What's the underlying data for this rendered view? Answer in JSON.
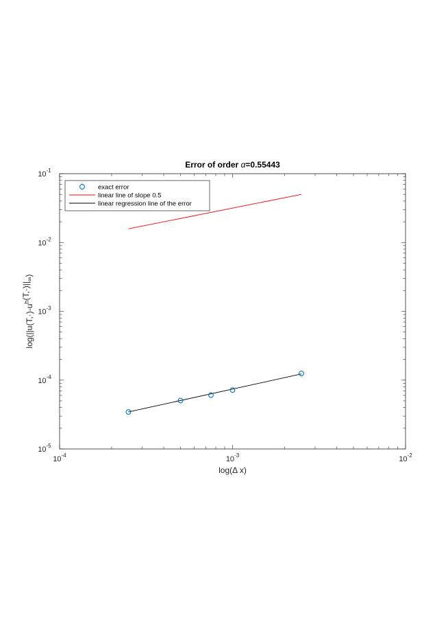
{
  "chart_data": {
    "type": "scatter",
    "title_text": "Error of order ",
    "title_symbol": "α",
    "title_value": "=0.55443",
    "x_scale": "log",
    "y_scale": "log",
    "xlim": [
      0.0001,
      0.01
    ],
    "ylim": [
      1e-05,
      0.1
    ],
    "xlabel": "log(Δ x)",
    "ylabel": "log(||u(T,·)-u^h(T,·)||_∞)",
    "x_ticks": [
      {
        "base": "10",
        "exp": "-4",
        "value": 0.0001
      },
      {
        "base": "10",
        "exp": "-3",
        "value": 0.001
      },
      {
        "base": "10",
        "exp": "-2",
        "value": 0.01
      }
    ],
    "y_ticks": [
      {
        "base": "10",
        "exp": "-5",
        "value": 1e-05
      },
      {
        "base": "10",
        "exp": "-4",
        "value": 0.0001
      },
      {
        "base": "10",
        "exp": "-3",
        "value": 0.001
      },
      {
        "base": "10",
        "exp": "-2",
        "value": 0.01
      },
      {
        "base": "10",
        "exp": "-1",
        "value": 0.1
      }
    ],
    "grid": false,
    "legend_position": "top-left",
    "series": [
      {
        "name": "exact error",
        "kind": "markers",
        "marker": "circle",
        "color": "#0072BD",
        "x": [
          0.00025,
          0.0005,
          0.00075,
          0.001,
          0.0025
        ],
        "y": [
          3.45e-05,
          5.05e-05,
          6.05e-05,
          7.18e-05,
          0.000125
        ]
      },
      {
        "name": "linear line of slope 0.5",
        "kind": "line",
        "color": "#FF0000",
        "x": [
          0.00025,
          0.0025
        ],
        "y": [
          0.0158,
          0.05
        ]
      },
      {
        "name": "linear regression line of the error",
        "kind": "line",
        "color": "#000000",
        "x": [
          0.00025,
          0.0025
        ],
        "y": [
          3.45e-05,
          0.000123
        ]
      }
    ]
  }
}
